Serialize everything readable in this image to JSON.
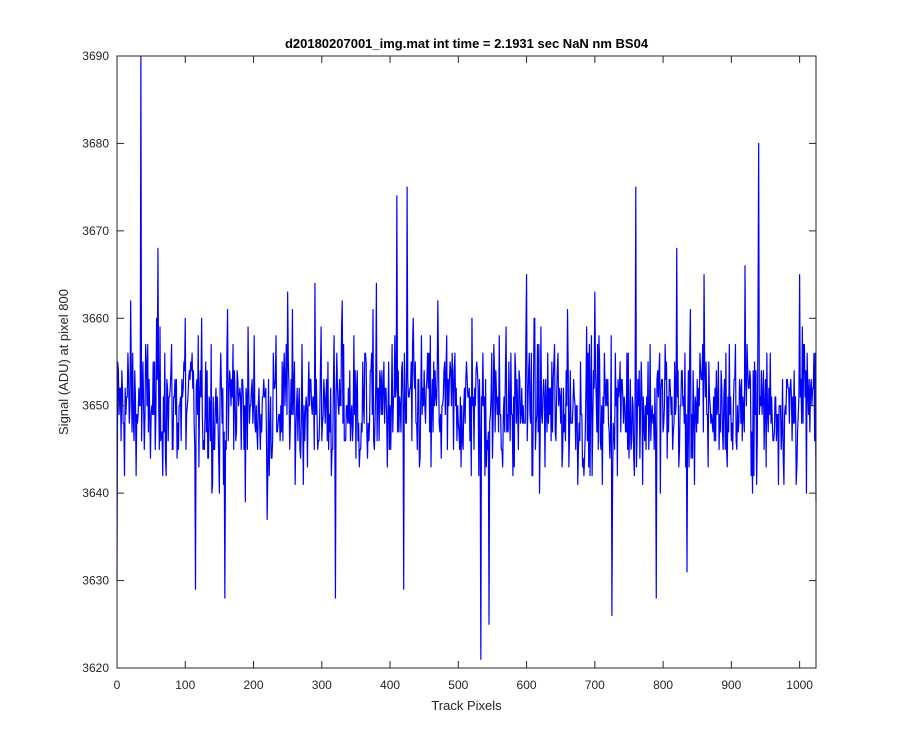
{
  "chart_data": {
    "type": "line",
    "title": "d20180207001_img.mat int time = 2.1931 sec  NaN nm BS04",
    "xlabel": "Track Pixels",
    "ylabel": "Signal (ADU) at pixel 800",
    "xlim": [
      0,
      1024
    ],
    "ylim": [
      3620,
      3690
    ],
    "xticks": [
      0,
      100,
      200,
      300,
      400,
      500,
      600,
      700,
      800,
      900,
      1000
    ],
    "yticks": [
      3620,
      3630,
      3640,
      3650,
      3660,
      3670,
      3680,
      3690
    ],
    "grid": false,
    "legend": "none",
    "series": [
      {
        "color": "#0000ff",
        "x": [
          0,
          20,
          30,
          35,
          40,
          60,
          70,
          100,
          115,
          130,
          150,
          158,
          170,
          200,
          220,
          250,
          270,
          290,
          300,
          320,
          330,
          350,
          380,
          400,
          410,
          420,
          425,
          440,
          470,
          500,
          520,
          533,
          545,
          560,
          580,
          600,
          630,
          660,
          685,
          700,
          725,
          760,
          790,
          820,
          835,
          860,
          900,
          920,
          940,
          970,
          1000,
          1024
        ],
        "values": [
          3630,
          3662,
          3648,
          3690,
          3645,
          3668,
          3656,
          3660,
          3629,
          3655,
          3640,
          3628,
          3657,
          3650,
          3637,
          3663,
          3648,
          3664,
          3646,
          3628,
          3662,
          3644,
          3664,
          3650,
          3674,
          3629,
          3675,
          3645,
          3662,
          3648,
          3660,
          3621,
          3625,
          3658,
          3642,
          3665,
          3647,
          3661,
          3644,
          3663,
          3626,
          3675,
          3628,
          3668,
          3631,
          3665,
          3646,
          3666,
          3680,
          3650,
          3665,
          3639
        ]
      }
    ]
  }
}
